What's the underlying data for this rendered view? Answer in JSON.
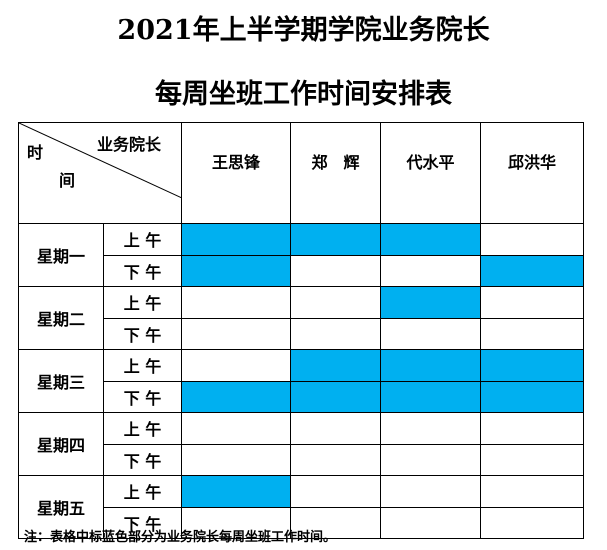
{
  "title": {
    "line1": "2021年上半学期学院业务院长",
    "line2": "每周坐班工作时间安排表"
  },
  "header": {
    "corner_top": "业务院长",
    "corner_left1": "时",
    "corner_left2": "间",
    "leaders": [
      "王思锋",
      "郑　辉",
      "代水平",
      "邱洪华"
    ]
  },
  "period_labels": [
    "上 午",
    "下 午"
  ],
  "days": [
    {
      "name": "星期一",
      "am": [
        true,
        true,
        true,
        false
      ],
      "pm": [
        true,
        false,
        false,
        true
      ]
    },
    {
      "name": "星期二",
      "am": [
        false,
        false,
        true,
        false
      ],
      "pm": [
        false,
        false,
        false,
        false
      ]
    },
    {
      "name": "星期三",
      "am": [
        false,
        true,
        true,
        true
      ],
      "pm": [
        true,
        true,
        true,
        true
      ]
    },
    {
      "name": "星期四",
      "am": [
        false,
        false,
        false,
        false
      ],
      "pm": [
        false,
        false,
        false,
        false
      ]
    },
    {
      "name": "星期五",
      "am": [
        true,
        false,
        false,
        false
      ],
      "pm": [
        false,
        false,
        false,
        false
      ]
    }
  ],
  "colors": {
    "scheduled": "#00b0f0"
  },
  "note": "注：表格中标蓝色部分为业务院长每周坐班工作时间。"
}
